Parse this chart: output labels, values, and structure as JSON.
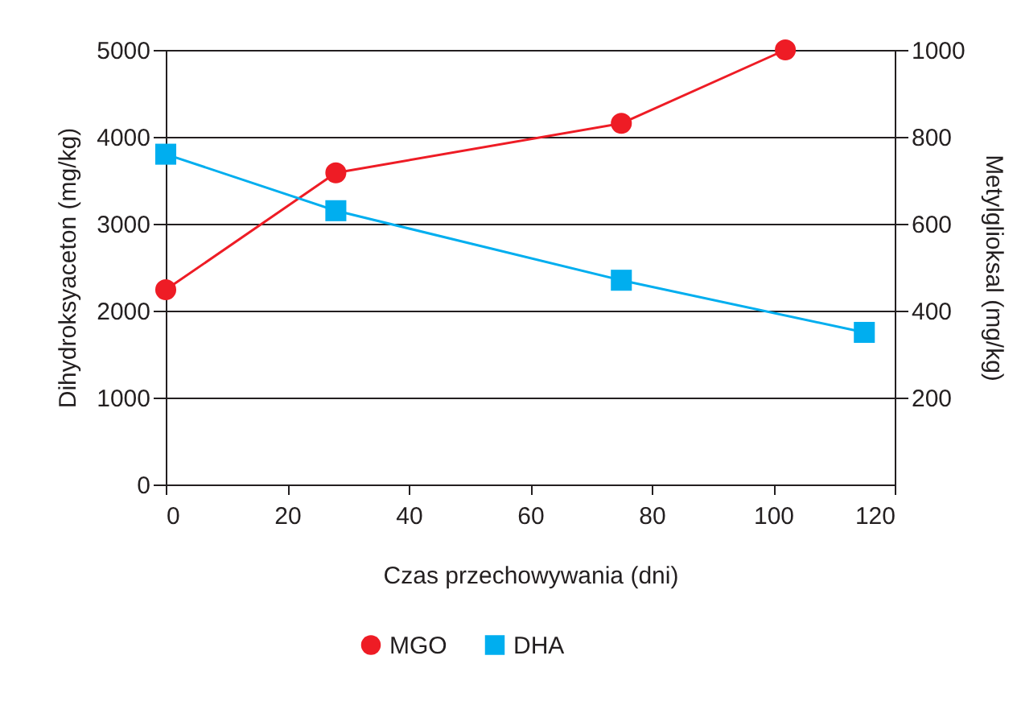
{
  "chart_data": {
    "type": "line",
    "xlabel": "Czas przechowywania (dni)",
    "ylabel": "Dihydroksyaceton (mg/kg)",
    "y2label": "Metylglioksal (mg/kg)",
    "xlim": [
      0,
      120
    ],
    "xticks": [
      0,
      20,
      40,
      60,
      80,
      100,
      120
    ],
    "ylim": [
      0,
      5000
    ],
    "yticks": [
      0,
      1000,
      2000,
      3000,
      4000,
      5000
    ],
    "y2lim": [
      0,
      1000
    ],
    "y2ticks": [
      200,
      400,
      600,
      800,
      1000
    ],
    "grid": "y",
    "legend": "bottom",
    "line_style": "solid",
    "series": [
      {
        "name": "MGO",
        "color": "#ee1c25",
        "axis": "y2",
        "marker": "circle",
        "x": [
          0,
          28,
          75,
          102
        ],
        "values": [
          448,
          717,
          831,
          1000
        ]
      },
      {
        "name": "DHA",
        "color": "#00aeef",
        "axis": "y",
        "marker": "square",
        "x": [
          0,
          28,
          75,
          115
        ],
        "values": [
          3800,
          3150,
          2350,
          1750
        ]
      }
    ]
  }
}
